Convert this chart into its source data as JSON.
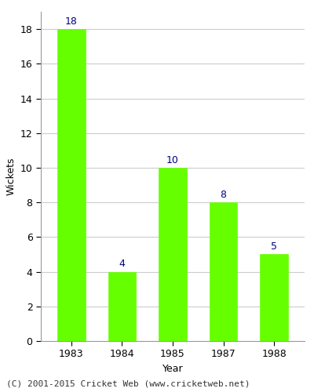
{
  "years": [
    "1983",
    "1984",
    "1985",
    "1987",
    "1988"
  ],
  "wickets": [
    18,
    4,
    10,
    8,
    5
  ],
  "bar_color": "#66ff00",
  "bar_edgecolor": "#66ff00",
  "label_color": "#000080",
  "xlabel": "Year",
  "ylabel": "Wickets",
  "ylim": [
    0,
    19
  ],
  "yticks": [
    0,
    2,
    4,
    6,
    8,
    10,
    12,
    14,
    16,
    18
  ],
  "label_fontsize": 9,
  "axis_label_fontsize": 9,
  "tick_fontsize": 9,
  "footer_text": "(C) 2001-2015 Cricket Web (www.cricketweb.net)",
  "footer_fontsize": 8,
  "background_color": "#ffffff",
  "grid_color": "#cccccc",
  "bar_width": 0.55
}
